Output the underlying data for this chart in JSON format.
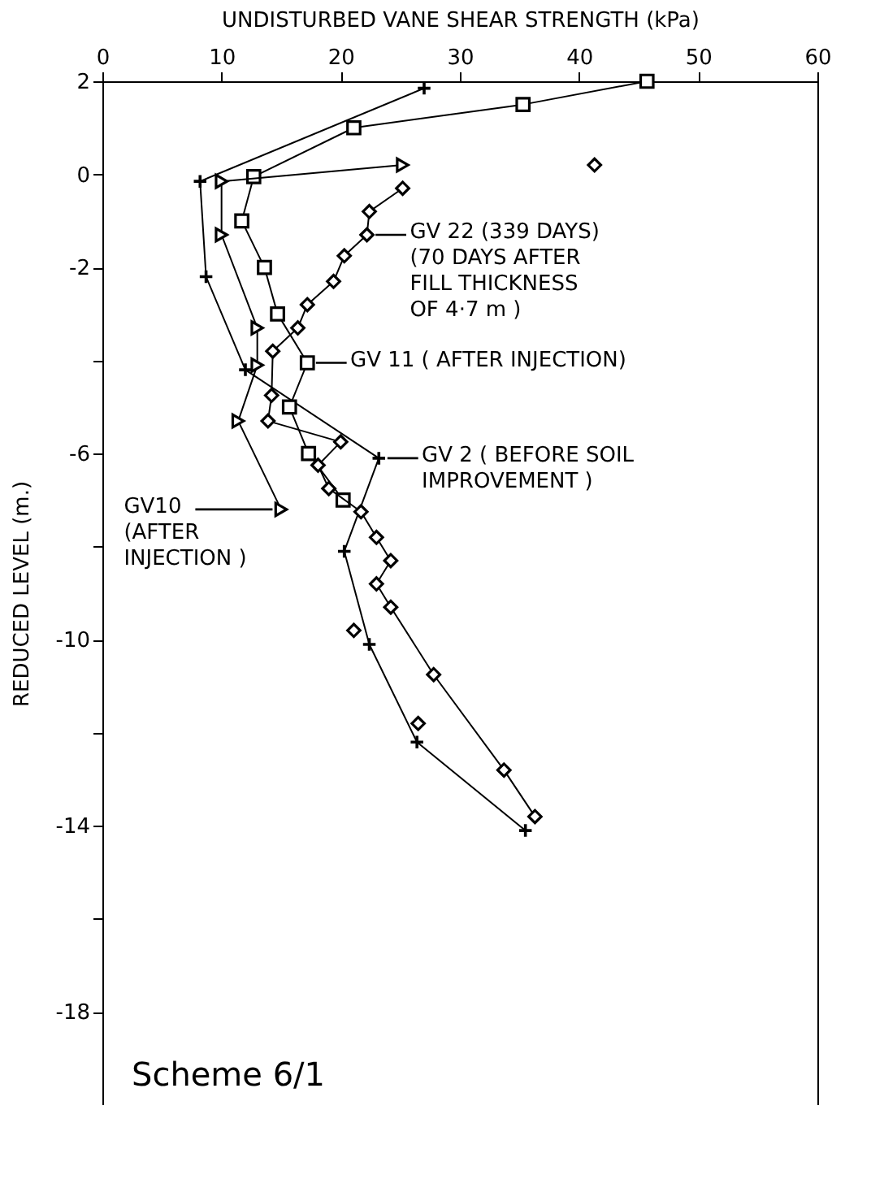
{
  "chart_data": {
    "type": "line",
    "xlabel": "UNDISTURBED  VANE  SHEAR  STRENGTH  (kPa)",
    "ylabel": "REDUCED  LEVEL  (m.)",
    "xlim": [
      0,
      60
    ],
    "xticks": [
      0,
      10,
      20,
      30,
      40,
      50,
      60
    ],
    "ylim": [
      -20,
      2
    ],
    "yticks": [
      2,
      0,
      -2,
      {
        "value": -4,
        "label": null
      },
      -6,
      {
        "value": -8,
        "label": null
      },
      -10,
      {
        "value": -12,
        "label": null
      },
      -14,
      {
        "value": -16,
        "label": null
      },
      -18
    ],
    "series": [
      {
        "type": "line",
        "marker": "cross",
        "color": "#000000",
        "x": [
          27,
          8.2,
          8.7,
          12,
          23.2,
          20.3,
          22.4,
          26.4,
          35.5
        ],
        "values": [
          1.85,
          -0.15,
          -2.2,
          -4.2,
          -6.1,
          -8.1,
          -10.1,
          -12.2,
          -14.1
        ]
      },
      {
        "type": "line",
        "marker": "square",
        "color": "#000000",
        "x": [
          45.7,
          35.3,
          21.1,
          12.7,
          11.7,
          13.6,
          14.7,
          17.2,
          15.7,
          17.3,
          20.2
        ],
        "values": [
          2,
          1.5,
          1,
          -0.05,
          -1,
          -2,
          -3,
          -4.05,
          -5,
          -6,
          -7
        ]
      },
      {
        "type": "line",
        "marker": "triangle",
        "color": "#000000",
        "x": [
          25.2,
          10,
          10,
          13,
          13,
          11.4,
          15
        ],
        "values": [
          0.2,
          -0.15,
          -1.3,
          -3.3,
          -4.1,
          -5.3,
          -7.2
        ]
      },
      {
        "type": "line",
        "marker": "diamond",
        "color": "#000000",
        "x": [
          25.2,
          22.4,
          22.2,
          20.3,
          19.4,
          17.2,
          16.4,
          14.3,
          14.2,
          13.9,
          20,
          18.1,
          19,
          21.7,
          23,
          24.2,
          23,
          24.2,
          27.8,
          33.7,
          36.3
        ],
        "values": [
          -0.3,
          -0.8,
          -1.3,
          -1.75,
          -2.3,
          -2.8,
          -3.3,
          -3.8,
          -4.75,
          -5.3,
          -5.75,
          -6.25,
          -6.75,
          -7.25,
          -7.8,
          -8.3,
          -8.8,
          -9.3,
          -10.75,
          -12.8,
          -13.8
        ]
      },
      {
        "type": "scatter",
        "marker": "diamond",
        "color": "#000000",
        "x": [
          41.3,
          21.1,
          26.5
        ],
        "values": [
          0.2,
          -9.8,
          -11.8
        ]
      }
    ],
    "annotations": [
      {
        "text": "GV 22  (339 DAYS)\n(70 DAYS AFTER\nFILL THICKNESS\nOF 4·7 m )",
        "x": 22.2,
        "y": -1.3
      },
      {
        "text": "GV 11 ( AFTER  INJECTION)",
        "x": 17.2,
        "y": -4.05
      },
      {
        "text": "GV 2  ( BEFORE  SOIL\nIMPROVEMENT )",
        "x": 23.2,
        "y": -6.1
      },
      {
        "text": "GV10\n(AFTER\nINJECTION )",
        "x": 15,
        "y": -7.2
      },
      "Scheme 6/1"
    ]
  }
}
